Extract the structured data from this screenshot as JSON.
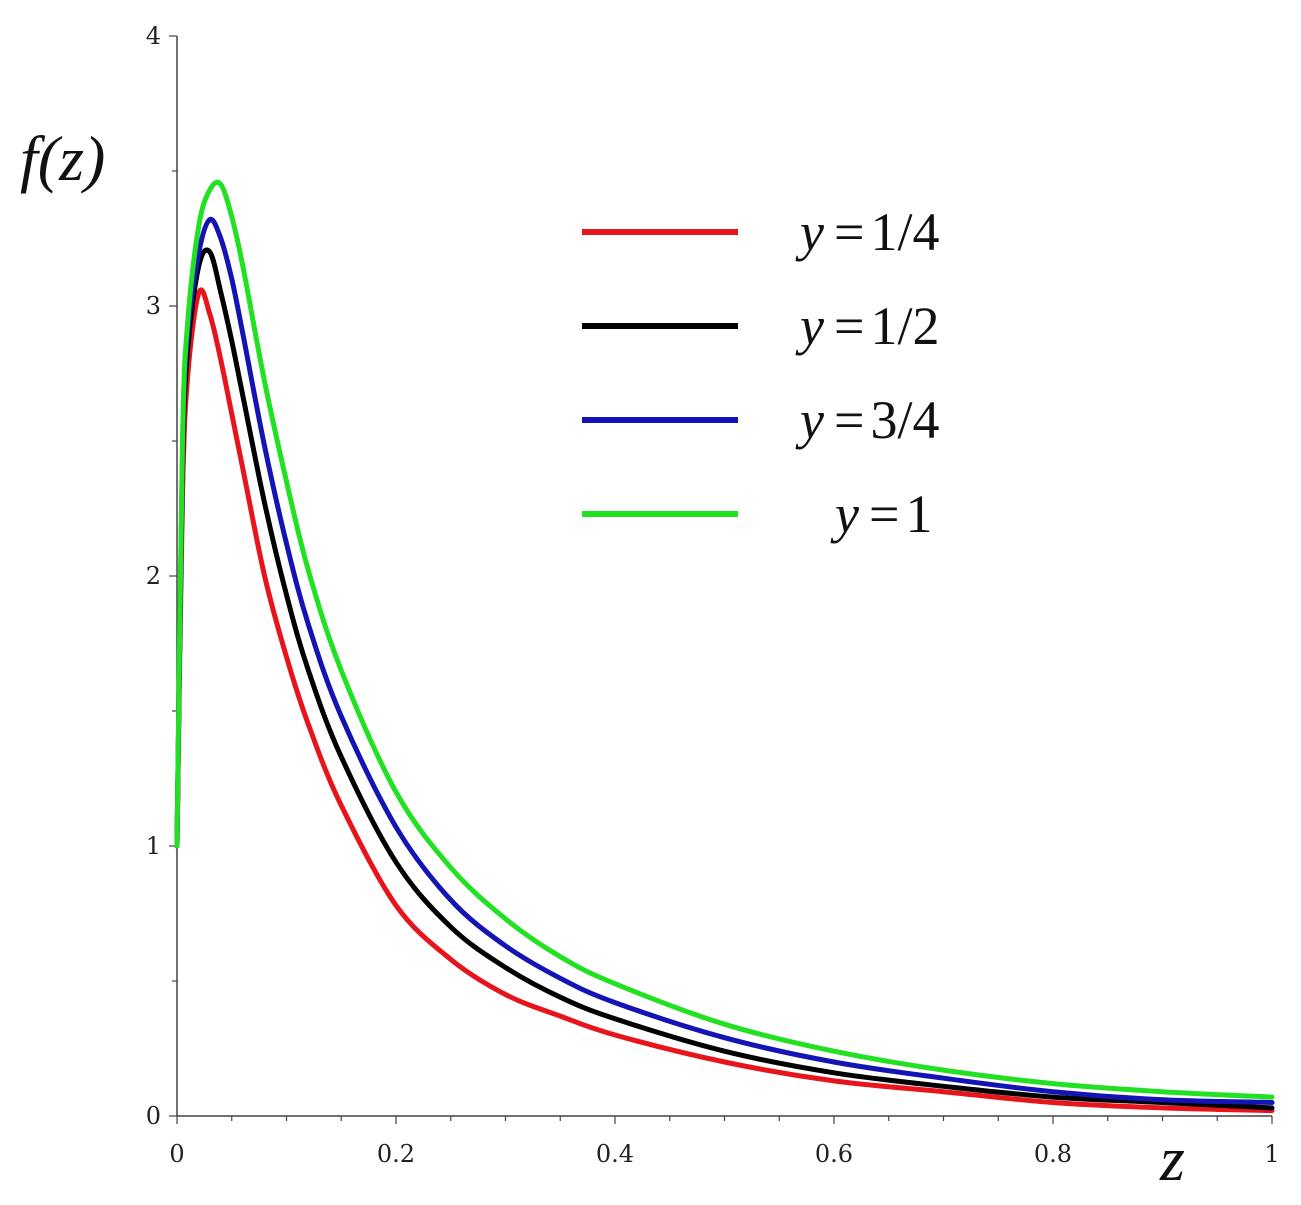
{
  "chart_data": {
    "type": "line",
    "title": "",
    "xlabel": "z",
    "ylabel": "f(z)",
    "xlim": [
      0,
      1
    ],
    "ylim": [
      0,
      4
    ],
    "grid": false,
    "legend_position": "top-right",
    "x_ticks": [
      "0",
      "0.2",
      "0.4",
      "0.6",
      "0.8",
      "1"
    ],
    "y_ticks": [
      "0",
      "1",
      "2",
      "3",
      "4"
    ],
    "x": [
      0,
      0.005,
      0.01,
      0.02,
      0.03,
      0.04,
      0.05,
      0.06,
      0.08,
      0.1,
      0.12,
      0.15,
      0.2,
      0.25,
      0.3,
      0.35,
      0.4,
      0.5,
      0.6,
      0.7,
      0.8,
      0.9,
      1.0
    ],
    "series": [
      {
        "name": "y = 1/4",
        "color": "#e8141b",
        "values": [
          1.0,
          2.3,
          2.75,
          3.05,
          2.97,
          2.8,
          2.6,
          2.4,
          2.0,
          1.7,
          1.45,
          1.15,
          0.78,
          0.58,
          0.45,
          0.37,
          0.3,
          0.2,
          0.13,
          0.09,
          0.05,
          0.03,
          0.02
        ]
      },
      {
        "name": "y = 1/2",
        "color": "#000000",
        "values": [
          1.0,
          2.4,
          2.85,
          3.15,
          3.2,
          3.05,
          2.87,
          2.67,
          2.27,
          1.93,
          1.65,
          1.33,
          0.94,
          0.7,
          0.55,
          0.44,
          0.36,
          0.24,
          0.16,
          0.11,
          0.07,
          0.05,
          0.03
        ]
      },
      {
        "name": "y = 3/4",
        "color": "#1414b4",
        "values": [
          1.0,
          2.45,
          2.9,
          3.2,
          3.32,
          3.25,
          3.1,
          2.9,
          2.48,
          2.12,
          1.82,
          1.48,
          1.07,
          0.8,
          0.63,
          0.51,
          0.42,
          0.29,
          0.2,
          0.14,
          0.09,
          0.06,
          0.05
        ]
      },
      {
        "name": "y = 1",
        "color": "#22e022",
        "values": [
          1.0,
          2.5,
          2.95,
          3.3,
          3.43,
          3.45,
          3.33,
          3.15,
          2.72,
          2.35,
          2.02,
          1.65,
          1.2,
          0.92,
          0.73,
          0.59,
          0.49,
          0.34,
          0.24,
          0.17,
          0.12,
          0.09,
          0.07
        ]
      }
    ],
    "legend": [
      {
        "label_y": "y",
        "label_eq": "=",
        "label_val": "1/4",
        "color": "#e8141b"
      },
      {
        "label_y": "y",
        "label_eq": "=",
        "label_val": "1/2",
        "color": "#000000"
      },
      {
        "label_y": "y",
        "label_eq": "=",
        "label_val": "3/4",
        "color": "#1414b4"
      },
      {
        "label_y": "y",
        "label_eq": "=",
        "label_val": "1",
        "color": "#22e022"
      }
    ]
  }
}
